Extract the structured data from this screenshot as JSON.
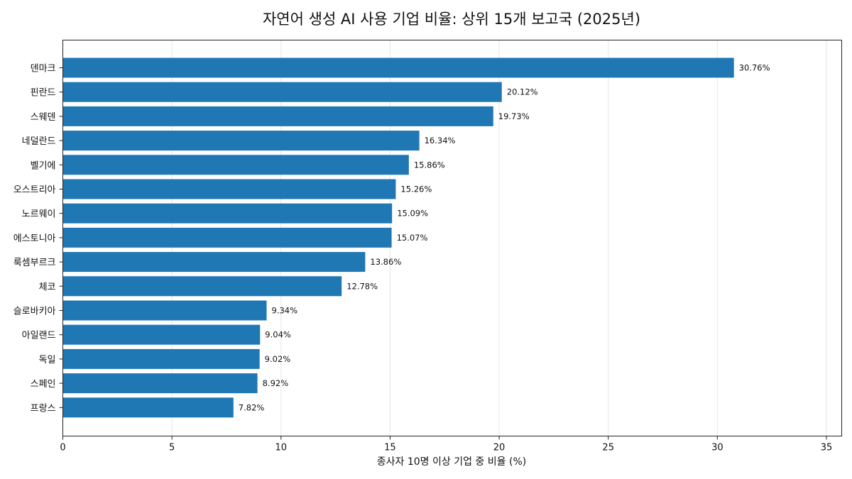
{
  "chart_data": {
    "type": "bar",
    "orientation": "horizontal",
    "title": "자연어 생성 AI 사용 기업 비율: 상위 15개 보고국 (2025년)",
    "xlabel": "종사자 10명 이상 기업 중 비율 (%)",
    "ylabel": "",
    "xlim": [
      0,
      35.7
    ],
    "xticks": [
      0,
      5,
      10,
      15,
      20,
      25,
      30,
      35
    ],
    "grid": "vertical",
    "bar_color": "#1f77b4",
    "value_suffix": "%",
    "categories": [
      "덴마크",
      "핀란드",
      "스웨덴",
      "네덜란드",
      "벨기에",
      "오스트리아",
      "노르웨이",
      "에스토니아",
      "룩셈부르크",
      "체코",
      "슬로바키아",
      "아일랜드",
      "독일",
      "스페인",
      "프랑스"
    ],
    "values": [
      30.76,
      20.12,
      19.73,
      16.34,
      15.86,
      15.26,
      15.09,
      15.07,
      13.86,
      12.78,
      9.34,
      9.04,
      9.02,
      8.92,
      7.82
    ],
    "value_labels": [
      "30.76%",
      "20.12%",
      "19.73%",
      "16.34%",
      "15.86%",
      "15.26%",
      "15.09%",
      "15.07%",
      "13.86%",
      "12.78%",
      "9.34%",
      "9.04%",
      "9.02%",
      "8.92%",
      "7.82%"
    ]
  }
}
